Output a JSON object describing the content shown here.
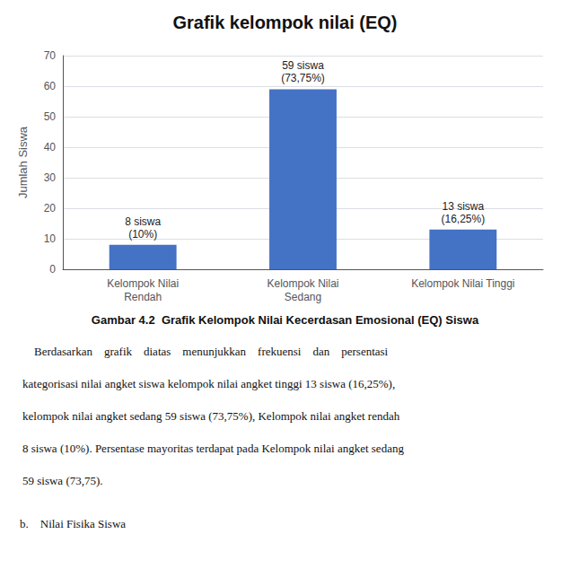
{
  "chart_data": {
    "type": "bar",
    "title": "Grafik kelompok nilai (EQ)",
    "y_label": "Jumlah Siswa",
    "categories": [
      "Kelompok Nilai\nRendah",
      "Kelompok Nilai\nSedang",
      "Kelompok Nilai Tinggi"
    ],
    "values": [
      8,
      59,
      13
    ],
    "value_labels": [
      "8 siswa\n(10%)",
      "59 siswa\n(73,75%)",
      "13 siswa\n(16,25%)"
    ],
    "data_labels": true,
    "color": "#4472C4",
    "ylim": [
      0,
      70
    ],
    "yticks": [
      0,
      10,
      20,
      30,
      40,
      50,
      60,
      70
    ],
    "grid": true,
    "annotations": [
      "Gambar 4.2  Grafik Kelompok Nilai Kecerdasan Emosional (EQ) Siswa",
      "    Berdasarkan    grafik    diatas    menunjukkan    frekuensi    dan    persentasi",
      "kategorisasi nilai angket siswa kelompok nilai angket tinggi 13 siswa (16,25%),",
      "kelompok nilai angket sedang 59 siswa (73,75%), Kelompok nilai angket rendah",
      "8 siswa (10%). Persentase mayoritas terdapat pada Kelompok nilai angket sedang",
      "59 siswa (73,75).",
      "b.    Nilai Fisika Siswa"
    ]
  }
}
